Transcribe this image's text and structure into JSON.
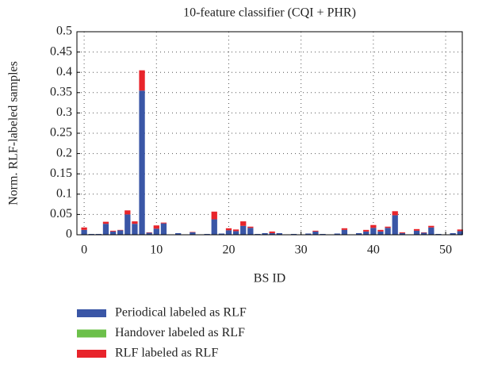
{
  "chart_data": {
    "type": "stacked_bar",
    "title": "10-feature classifier (CQI + PHR)",
    "x_label": "BS ID",
    "y_label": "Norm. RLF-labeled samples",
    "x": [
      0,
      1,
      2,
      3,
      4,
      5,
      6,
      7,
      8,
      9,
      10,
      11,
      12,
      13,
      14,
      15,
      16,
      17,
      18,
      19,
      20,
      21,
      22,
      23,
      24,
      25,
      26,
      27,
      28,
      29,
      30,
      31,
      32,
      33,
      34,
      35,
      36,
      37,
      38,
      39,
      40,
      41,
      42,
      43,
      44,
      45,
      46,
      47,
      48,
      49,
      50,
      51,
      52
    ],
    "xlim": [
      -1,
      52.3
    ],
    "xticks": [
      0,
      10,
      20,
      30,
      40,
      50
    ],
    "ylim": [
      0,
      0.5
    ],
    "yticks": [
      0,
      0.05,
      0.1,
      0.15,
      0.2,
      0.25,
      0.3,
      0.35,
      0.4,
      0.45,
      0.5
    ],
    "grid": true,
    "series": [
      {
        "name": "Periodical labeled as RLF",
        "color": "#3a56a6",
        "values": [
          0.012,
          0.002,
          0.002,
          0.027,
          0.008,
          0.011,
          0.05,
          0.027,
          0.355,
          0.005,
          0.015,
          0.028,
          0.001,
          0.004,
          0.001,
          0.006,
          0.001,
          0.002,
          0.038,
          0.003,
          0.011,
          0.009,
          0.022,
          0.017,
          0.002,
          0.004,
          0.004,
          0.004,
          0.001,
          0.002,
          0.001,
          0.003,
          0.008,
          0.002,
          0.001,
          0.003,
          0.012,
          0.001,
          0.004,
          0.008,
          0.017,
          0.008,
          0.017,
          0.048,
          0.004,
          0.001,
          0.01,
          0.005,
          0.018,
          0.002,
          0.001,
          0.004,
          0.009
        ]
      },
      {
        "name": "Handover labeled as RLF",
        "color": "#6cc04a",
        "values": [
          0,
          0,
          0,
          0,
          0,
          0,
          0,
          0,
          0,
          0,
          0,
          0,
          0,
          0,
          0,
          0,
          0,
          0,
          0,
          0,
          0,
          0,
          0,
          0,
          0,
          0,
          0,
          0,
          0,
          0,
          0,
          0,
          0,
          0,
          0,
          0,
          0,
          0,
          0,
          0,
          0,
          0,
          0,
          0,
          0,
          0,
          0,
          0,
          0,
          0,
          0,
          0,
          0
        ]
      },
      {
        "name": "RLF labeled as RLF",
        "color": "#e8242b",
        "values": [
          0.006,
          0,
          0,
          0.005,
          0.002,
          0.001,
          0.01,
          0.006,
          0.05,
          0.001,
          0.008,
          0.002,
          0,
          0,
          0,
          0.001,
          0,
          0,
          0.019,
          0,
          0.005,
          0.004,
          0.011,
          0.003,
          0,
          0,
          0.004,
          0,
          0,
          0,
          0,
          0,
          0.002,
          0,
          0,
          0,
          0.004,
          0,
          0,
          0.004,
          0.007,
          0.004,
          0.003,
          0.01,
          0.002,
          0,
          0.004,
          0.001,
          0.004,
          0,
          0,
          0,
          0.004
        ]
      }
    ]
  }
}
